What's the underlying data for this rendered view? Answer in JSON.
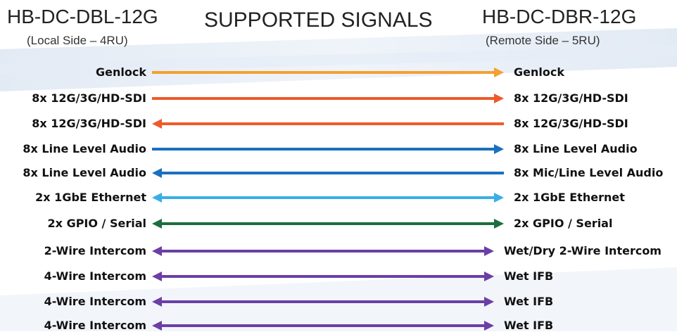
{
  "header": {
    "left_title": "HB-DC-DBL-12G",
    "left_subtitle": "(Local Side – 4RU)",
    "center_title": "SUPPORTED SIGNALS",
    "right_title": "HB-DC-DBR-12G",
    "right_subtitle": "(Remote Side – 5RU)"
  },
  "signals": [
    {
      "left": "Genlock",
      "right": "Genlock",
      "direction": "right",
      "color": "#f5a030"
    },
    {
      "left": "8x 12G/3G/HD-SDI",
      "right": "8x 12G/3G/HD-SDI",
      "direction": "right",
      "color": "#ee5a2a"
    },
    {
      "left": "8x 12G/3G/HD-SDI",
      "right": "8x 12G/3G/HD-SDI",
      "direction": "left",
      "color": "#ee5a2a"
    },
    {
      "left": "8x Line Level Audio",
      "right": "8x Line Level Audio",
      "direction": "right",
      "color": "#1a70bf"
    },
    {
      "left": "8x Line Level Audio",
      "right": "8x Mic/Line Level Audio",
      "direction": "left",
      "color": "#1a70bf"
    },
    {
      "left": "2x 1GbE Ethernet",
      "right": "2x 1GbE Ethernet",
      "direction": "both",
      "color": "#3aaee6"
    },
    {
      "left": "2x GPIO / Serial",
      "right": "2x GPIO / Serial",
      "direction": "both",
      "color": "#1d6e3e"
    },
    {
      "left": "2-Wire Intercom",
      "right": "Wet/Dry 2-Wire Intercom",
      "direction": "both",
      "color": "#6b3fa6"
    },
    {
      "left": "4-Wire Intercom",
      "right": "Wet IFB",
      "direction": "both",
      "color": "#6b3fa6"
    },
    {
      "left": "4-Wire Intercom",
      "right": "Wet IFB",
      "direction": "both",
      "color": "#6b3fa6"
    },
    {
      "left": "4-Wire Intercom",
      "right": "Wet IFB",
      "direction": "both",
      "color": "#6b3fa6"
    }
  ]
}
